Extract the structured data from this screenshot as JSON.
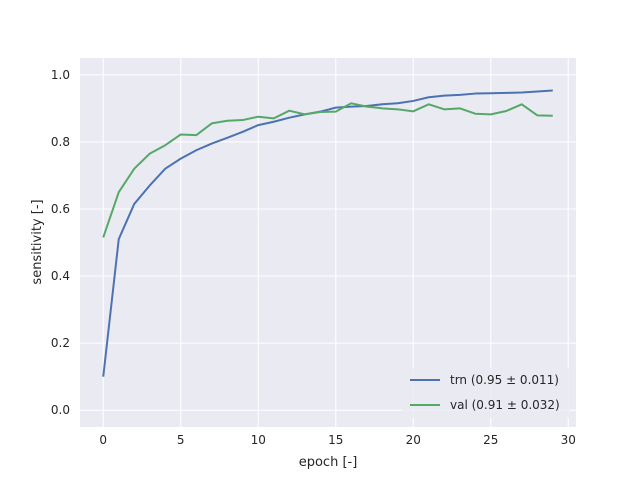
{
  "chart_data": {
    "type": "line",
    "title": "",
    "xlabel": "epoch [-]",
    "ylabel": "sensitivity [-]",
    "xlim": [
      -1.5,
      30.5
    ],
    "ylim": [
      -0.05,
      1.05
    ],
    "xticks": [
      0,
      5,
      10,
      15,
      20,
      25,
      30
    ],
    "yticks": [
      0.0,
      0.2,
      0.4,
      0.6,
      0.8,
      1.0
    ],
    "xtick_labels": [
      "0",
      "5",
      "10",
      "15",
      "20",
      "25",
      "30"
    ],
    "ytick_labels": [
      "0.0",
      "0.2",
      "0.4",
      "0.6",
      "0.8",
      "1.0"
    ],
    "grid": true,
    "legend_position": "bottom-right",
    "colors": {
      "plot_background": "#EAEAF2",
      "grid": "#FFFFFF",
      "text": "#262626"
    },
    "x": [
      0,
      1,
      2,
      3,
      4,
      5,
      6,
      7,
      8,
      9,
      10,
      11,
      12,
      13,
      14,
      15,
      16,
      17,
      18,
      19,
      20,
      21,
      22,
      23,
      24,
      25,
      26,
      27,
      28,
      29
    ],
    "series": [
      {
        "name": "trn (0.95 ± 0.011)",
        "color": "#4C72B0",
        "values": [
          0.1,
          0.51,
          0.615,
          0.67,
          0.72,
          0.75,
          0.775,
          0.795,
          0.812,
          0.83,
          0.85,
          0.86,
          0.872,
          0.882,
          0.89,
          0.902,
          0.905,
          0.907,
          0.912,
          0.915,
          0.922,
          0.933,
          0.938,
          0.94,
          0.944,
          0.945,
          0.946,
          0.947,
          0.95,
          0.953
        ]
      },
      {
        "name": "val (0.91 ± 0.032)",
        "color": "#55A868",
        "values": [
          0.515,
          0.65,
          0.72,
          0.765,
          0.79,
          0.822,
          0.82,
          0.855,
          0.863,
          0.865,
          0.875,
          0.87,
          0.893,
          0.882,
          0.889,
          0.89,
          0.915,
          0.905,
          0.9,
          0.897,
          0.891,
          0.912,
          0.897,
          0.9,
          0.884,
          0.882,
          0.892,
          0.912,
          0.879,
          0.878
        ]
      }
    ]
  }
}
